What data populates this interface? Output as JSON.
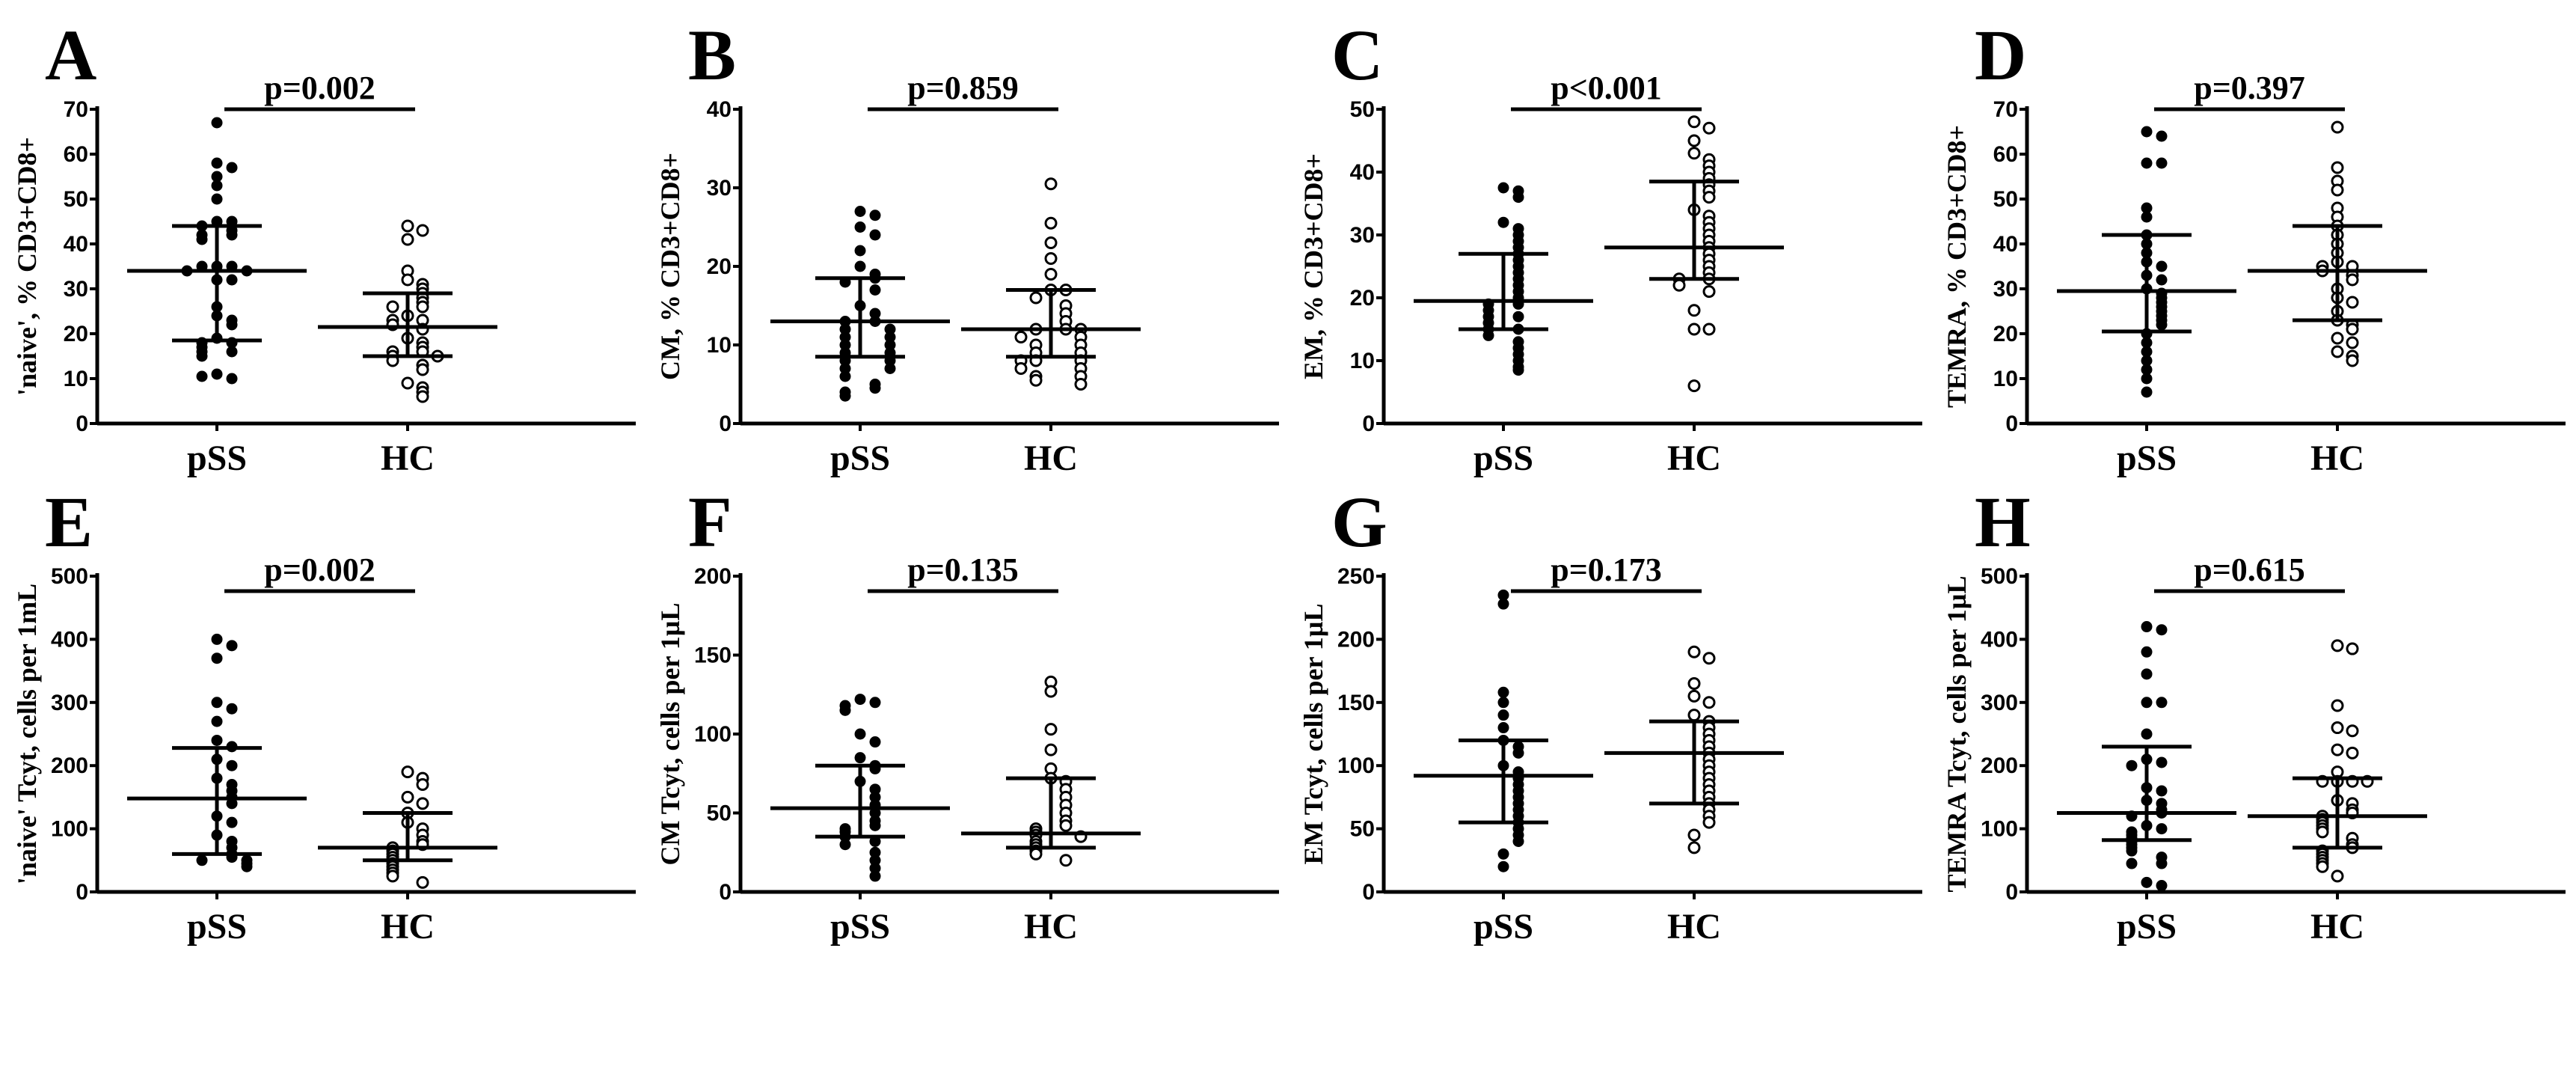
{
  "chart_data": [
    {
      "type": "scatter",
      "panel": "A",
      "ylabel": "'naive', % CD3+CD8+",
      "ylim": [
        0,
        70
      ],
      "yticks": [
        0,
        10,
        20,
        30,
        40,
        50,
        60,
        70
      ],
      "categories": [
        "pSS",
        "HC"
      ],
      "pvalue": "p=0.002",
      "series": [
        {
          "name": "pSS",
          "marker": "filled",
          "values": [
            67,
            58,
            57,
            55,
            53,
            50,
            45,
            45,
            44,
            43,
            42,
            42,
            41,
            35,
            35,
            35,
            34,
            34,
            32,
            32,
            26,
            24,
            23,
            22,
            19,
            18,
            18,
            17,
            16,
            16,
            15,
            11,
            10,
            10.5
          ],
          "median": 34,
          "q1": 18.5,
          "q3": 44
        },
        {
          "name": "HC",
          "marker": "open",
          "values": [
            44,
            43,
            41,
            34,
            32,
            31,
            30,
            29,
            28,
            27,
            26,
            26,
            24,
            23,
            23,
            22,
            21,
            19,
            18,
            17,
            16,
            16,
            15,
            15,
            14,
            13,
            12,
            9,
            8,
            7,
            6
          ],
          "median": 21.5,
          "q1": 15,
          "q3": 29
        }
      ]
    },
    {
      "type": "scatter",
      "panel": "B",
      "ylabel": "CM, % CD3+CD8+",
      "ylim": [
        0,
        40
      ],
      "yticks": [
        0,
        10,
        20,
        30,
        40
      ],
      "categories": [
        "pSS",
        "HC"
      ],
      "pvalue": "p=0.859",
      "series": [
        {
          "name": "pSS",
          "marker": "filled",
          "values": [
            27,
            26.5,
            25,
            24,
            22,
            20,
            19,
            18.5,
            18,
            17,
            15,
            14,
            13,
            13,
            12,
            12,
            11,
            11,
            10,
            10,
            9,
            9,
            8,
            8,
            7,
            7,
            6,
            5,
            4.5,
            4,
            3.5
          ],
          "median": 13,
          "q1": 8.5,
          "q3": 18.5
        },
        {
          "name": "HC",
          "marker": "open",
          "values": [
            30.5,
            25.5,
            23,
            21,
            19,
            17,
            17,
            16,
            15,
            14,
            13,
            12,
            12,
            12,
            11,
            11,
            10,
            10,
            9,
            9,
            8,
            8,
            8,
            7,
            7,
            6,
            6,
            5.5,
            5
          ],
          "median": 12,
          "q1": 8.5,
          "q3": 17
        }
      ]
    },
    {
      "type": "scatter",
      "panel": "C",
      "ylabel": "EM, % CD3+CD8+",
      "ylim": [
        0,
        50
      ],
      "yticks": [
        0,
        10,
        20,
        30,
        40,
        50
      ],
      "categories": [
        "pSS",
        "HC"
      ],
      "pvalue": "p<0.001",
      "series": [
        {
          "name": "pSS",
          "marker": "filled",
          "values": [
            37.5,
            37,
            36,
            32,
            31,
            30,
            29,
            28,
            27,
            26,
            25,
            24,
            23,
            22,
            21,
            20,
            19,
            19,
            18,
            17,
            17,
            16,
            15,
            15,
            14,
            13,
            12,
            11,
            10,
            9,
            8.5
          ],
          "median": 19.5,
          "q1": 15,
          "q3": 27
        },
        {
          "name": "HC",
          "marker": "open",
          "values": [
            48,
            47,
            45,
            43,
            42,
            41,
            40,
            39,
            38,
            37,
            36,
            34,
            33,
            32,
            31,
            30,
            29,
            28,
            27,
            26,
            25,
            24,
            23,
            23,
            22,
            21,
            18,
            15,
            15,
            6
          ],
          "median": 28,
          "q1": 23,
          "q3": 38.5
        }
      ]
    },
    {
      "type": "scatter",
      "panel": "D",
      "ylabel": "TEMRA, % CD3+CD8+",
      "ylim": [
        0,
        70
      ],
      "yticks": [
        0,
        10,
        20,
        30,
        40,
        50,
        60,
        70
      ],
      "categories": [
        "pSS",
        "HC"
      ],
      "pvalue": "p=0.397",
      "series": [
        {
          "name": "pSS",
          "marker": "filled",
          "values": [
            65,
            64,
            58,
            58,
            48,
            46,
            42,
            40,
            38,
            36,
            35,
            33,
            32,
            30,
            29,
            28,
            27,
            26,
            25,
            24,
            23,
            22,
            20,
            18,
            16,
            14,
            12,
            10,
            7
          ],
          "median": 29.5,
          "q1": 20.5,
          "q3": 42
        },
        {
          "name": "HC",
          "marker": "open",
          "values": [
            66,
            57,
            54,
            52,
            48,
            46,
            44,
            42,
            40,
            38,
            36,
            35,
            35,
            34,
            33,
            32,
            30,
            28,
            27,
            25,
            23,
            22,
            21,
            19,
            18,
            16,
            15,
            14
          ],
          "median": 34,
          "q1": 23,
          "q3": 44
        }
      ]
    },
    {
      "type": "scatter",
      "panel": "E",
      "ylabel": "'naive' Tcyt, cells per 1mL",
      "ylim": [
        0,
        500
      ],
      "yticks": [
        0,
        100,
        200,
        300,
        400,
        500
      ],
      "categories": [
        "pSS",
        "HC"
      ],
      "pvalue": "p=0.002",
      "series": [
        {
          "name": "pSS",
          "marker": "filled",
          "values": [
            400,
            390,
            370,
            300,
            290,
            270,
            240,
            230,
            210,
            200,
            180,
            170,
            160,
            150,
            140,
            120,
            110,
            90,
            80,
            70,
            60,
            55,
            50,
            50,
            45,
            40
          ],
          "median": 148,
          "q1": 60,
          "q3": 228
        },
        {
          "name": "HC",
          "marker": "open",
          "values": [
            190,
            180,
            170,
            150,
            140,
            125,
            110,
            100,
            90,
            80,
            75,
            70,
            65,
            60,
            55,
            50,
            45,
            40,
            35,
            30,
            25,
            15
          ],
          "median": 70,
          "q1": 50,
          "q3": 125
        }
      ]
    },
    {
      "type": "scatter",
      "panel": "F",
      "ylabel": "CM Tcyt, cells per 1µL",
      "ylim": [
        0,
        200
      ],
      "yticks": [
        0,
        50,
        100,
        150,
        200
      ],
      "categories": [
        "pSS",
        "HC"
      ],
      "pvalue": "p=0.135",
      "series": [
        {
          "name": "pSS",
          "marker": "filled",
          "values": [
            122,
            120,
            118,
            115,
            100,
            95,
            85,
            80,
            78,
            70,
            65,
            60,
            55,
            50,
            45,
            42,
            40,
            38,
            35,
            32,
            30,
            25,
            20,
            15,
            10
          ],
          "median": 53,
          "q1": 35,
          "q3": 80
        },
        {
          "name": "HC",
          "marker": "open",
          "values": [
            133,
            127,
            103,
            90,
            78,
            72,
            70,
            65,
            60,
            55,
            50,
            45,
            42,
            40,
            38,
            36,
            35,
            32,
            30,
            28,
            26,
            24,
            20
          ],
          "median": 37,
          "q1": 28,
          "q3": 72
        }
      ]
    },
    {
      "type": "scatter",
      "panel": "G",
      "ylabel": "EM Tcyt, cells per 1µL",
      "ylim": [
        0,
        250
      ],
      "yticks": [
        0,
        50,
        100,
        150,
        200,
        250
      ],
      "categories": [
        "pSS",
        "HC"
      ],
      "pvalue": "p=0.173",
      "series": [
        {
          "name": "pSS",
          "marker": "filled",
          "values": [
            235,
            228,
            158,
            150,
            140,
            130,
            120,
            115,
            110,
            100,
            95,
            90,
            85,
            80,
            75,
            70,
            65,
            60,
            55,
            50,
            45,
            40,
            30,
            20
          ],
          "median": 92,
          "q1": 55,
          "q3": 120
        },
        {
          "name": "HC",
          "marker": "open",
          "values": [
            190,
            185,
            165,
            155,
            150,
            140,
            135,
            130,
            125,
            120,
            115,
            110,
            105,
            100,
            95,
            90,
            85,
            80,
            75,
            70,
            65,
            60,
            55,
            45,
            35
          ],
          "median": 110,
          "q1": 70,
          "q3": 135
        }
      ]
    },
    {
      "type": "scatter",
      "panel": "H",
      "ylabel": "TEMRA Tcyt, cells per 1µL",
      "ylim": [
        0,
        500
      ],
      "yticks": [
        0,
        100,
        200,
        300,
        400,
        500
      ],
      "categories": [
        "pSS",
        "HC"
      ],
      "pvalue": "p=0.615",
      "series": [
        {
          "name": "pSS",
          "marker": "filled",
          "values": [
            420,
            415,
            380,
            345,
            300,
            300,
            250,
            210,
            205,
            200,
            165,
            160,
            145,
            140,
            130,
            125,
            120,
            105,
            100,
            95,
            90,
            85,
            80,
            75,
            70,
            65,
            55,
            45,
            45,
            15,
            10
          ],
          "median": 125,
          "q1": 82,
          "q3": 230
        },
        {
          "name": "HC",
          "marker": "open",
          "values": [
            390,
            385,
            295,
            260,
            255,
            225,
            220,
            190,
            175,
            175,
            175,
            175,
            145,
            140,
            130,
            125,
            120,
            115,
            110,
            105,
            100,
            95,
            85,
            75,
            70,
            65,
            60,
            55,
            50,
            45,
            40,
            25
          ],
          "median": 120,
          "q1": 70,
          "q3": 180
        }
      ]
    }
  ]
}
